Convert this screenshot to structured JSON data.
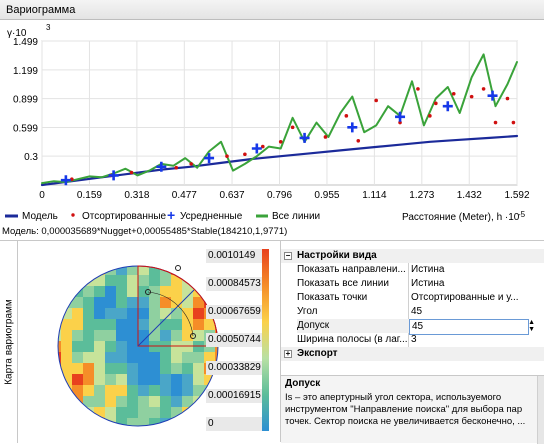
{
  "window": {
    "title": "Вариограмма"
  },
  "chart": {
    "y_axis_label": "γ·10",
    "y_exponent": "3",
    "x_axis_label": "Расстояние (Meter), h ·10",
    "x_exponent": "-5",
    "legend": [
      {
        "label": "Модель",
        "color": "#1b2a9a"
      },
      {
        "label": "Отсортированные",
        "color": "#d01010"
      },
      {
        "label": "Усредненные",
        "color": "#1638e8"
      },
      {
        "label": "Все линии",
        "color": "#3aa33a"
      }
    ]
  },
  "chart_data": {
    "type": "scatter",
    "x_ticks": [
      "0",
      "0.159",
      "0.318",
      "0.477",
      "0.637",
      "0.796",
      "0.955",
      "1.114",
      "1.273",
      "1.432",
      "1.592"
    ],
    "y_ticks": [
      "0.3",
      "0.599",
      "0.899",
      "1.199",
      "1.499"
    ],
    "xlim": [
      0,
      1.592
    ],
    "ylim": [
      0,
      1.499
    ],
    "series": [
      {
        "name": "Модель",
        "type": "line",
        "x": [
          0,
          0.1,
          0.2,
          0.3,
          0.4,
          0.5,
          0.6,
          0.7,
          0.8,
          0.9,
          1.0,
          1.1,
          1.2,
          1.3,
          1.4,
          1.5,
          1.592
        ],
        "y": [
          0.0,
          0.04,
          0.08,
          0.12,
          0.16,
          0.19,
          0.23,
          0.27,
          0.3,
          0.33,
          0.36,
          0.39,
          0.42,
          0.45,
          0.47,
          0.49,
          0.51
        ]
      },
      {
        "name": "Все линии",
        "type": "line",
        "x": [
          0.0,
          0.04,
          0.08,
          0.12,
          0.16,
          0.2,
          0.24,
          0.28,
          0.32,
          0.36,
          0.4,
          0.44,
          0.48,
          0.52,
          0.56,
          0.6,
          0.64,
          0.68,
          0.72,
          0.76,
          0.8,
          0.84,
          0.88,
          0.92,
          0.96,
          1.0,
          1.04,
          1.08,
          1.12,
          1.16,
          1.2,
          1.24,
          1.28,
          1.32,
          1.36,
          1.4,
          1.44,
          1.48,
          1.52,
          1.56,
          1.592
        ],
        "y": [
          0.02,
          0.04,
          0.03,
          0.06,
          0.09,
          0.08,
          0.12,
          0.17,
          0.1,
          0.15,
          0.22,
          0.2,
          0.28,
          0.18,
          0.35,
          0.45,
          0.15,
          0.22,
          0.3,
          0.4,
          0.38,
          0.7,
          0.45,
          0.65,
          0.5,
          0.75,
          0.92,
          0.55,
          0.62,
          0.82,
          0.72,
          1.08,
          0.62,
          0.9,
          1.02,
          0.75,
          1.12,
          1.36,
          0.82,
          1.05,
          1.28
        ]
      },
      {
        "name": "Отсортированные",
        "type": "scatter",
        "x": [
          0.1,
          0.23,
          0.3,
          0.45,
          0.5,
          0.62,
          0.68,
          0.74,
          0.8,
          0.84,
          0.95,
          1.02,
          1.06,
          1.12,
          1.2,
          1.26,
          1.3,
          1.32,
          1.38,
          1.44,
          1.48,
          1.52,
          1.56,
          1.58
        ],
        "y": [
          0.06,
          0.1,
          0.13,
          0.18,
          0.22,
          0.3,
          0.32,
          0.4,
          0.45,
          0.6,
          0.5,
          0.72,
          0.46,
          0.88,
          0.65,
          1.0,
          0.72,
          0.85,
          0.95,
          0.92,
          1.0,
          0.65,
          0.9,
          0.65
        ]
      },
      {
        "name": "Усредненные",
        "type": "scatter",
        "x": [
          0.08,
          0.24,
          0.4,
          0.56,
          0.72,
          0.88,
          1.04,
          1.2,
          1.36,
          1.51
        ],
        "y": [
          0.05,
          0.1,
          0.19,
          0.28,
          0.38,
          0.49,
          0.6,
          0.71,
          0.82,
          0.93
        ]
      }
    ]
  },
  "model_formula": "Модель: 0,000035689*Nugget+0,00055485*Stable(184210,1,9771)",
  "map": {
    "panel_label": "Карта вариограмм",
    "scale_values": [
      "0.0010149",
      "0.00084573",
      "0.00067659",
      "0.00050744",
      "0.00033829",
      "0.00016915",
      "0"
    ]
  },
  "properties": {
    "section_view": "Настройки вида",
    "rows": [
      {
        "key": "Показать направлени...",
        "value": "Истина"
      },
      {
        "key": "Показать все линии",
        "value": "Истина"
      },
      {
        "key": "Показать точки",
        "value": "Отсортированные и у..."
      },
      {
        "key": "Угол",
        "value": "45"
      },
      {
        "key": "Допуск",
        "value": "45"
      },
      {
        "key": "Ширина полосы (в лаг...",
        "value": "3"
      }
    ],
    "section_export": "Экспорт",
    "description": {
      "title": "Допуск",
      "text": "Is – это апертурный угол сектора, используемого инструментом \"Направление поиска\" для выбора пар точек. Сектор поиска не увеличивается бесконечно, ..."
    }
  }
}
